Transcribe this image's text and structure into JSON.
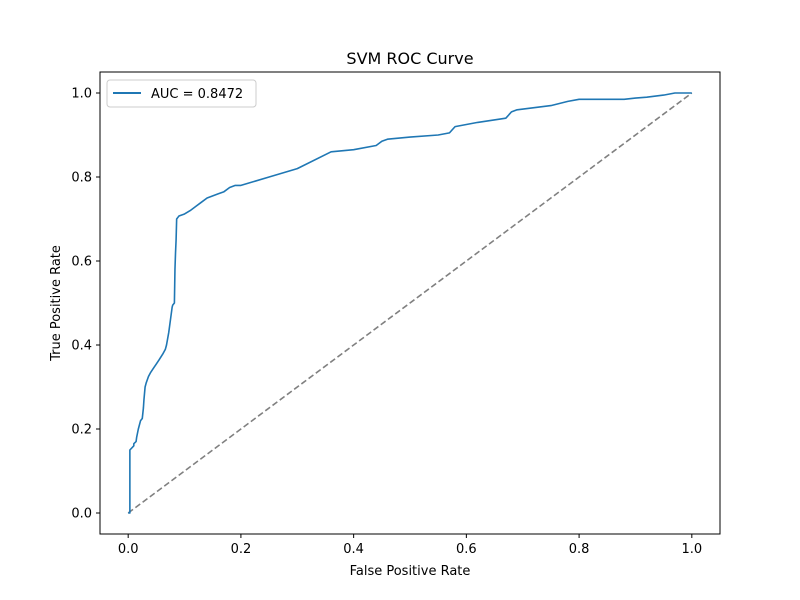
{
  "chart_data": {
    "type": "line",
    "title": "SVM ROC Curve",
    "xlabel": "False Positive Rate",
    "ylabel": "True Positive Rate",
    "xlim": [
      -0.05,
      1.05
    ],
    "ylim": [
      -0.05,
      1.05
    ],
    "xticks": [
      0.0,
      0.2,
      0.4,
      0.6,
      0.8,
      1.0
    ],
    "yticks": [
      0.0,
      0.2,
      0.4,
      0.6,
      0.8,
      1.0
    ],
    "xtick_labels": [
      "0.0",
      "0.2",
      "0.4",
      "0.6",
      "0.8",
      "1.0"
    ],
    "ytick_labels": [
      "0.0",
      "0.2",
      "0.4",
      "0.6",
      "0.8",
      "1.0"
    ],
    "grid": false,
    "legend_position": "top-left",
    "series": [
      {
        "name": "AUC = 0.8472",
        "color": "#1f77b4",
        "style": "solid",
        "x": [
          0.0,
          0.003,
          0.003,
          0.01,
          0.01,
          0.014,
          0.015,
          0.018,
          0.022,
          0.025,
          0.027,
          0.028,
          0.03,
          0.032,
          0.036,
          0.04,
          0.045,
          0.05,
          0.055,
          0.062,
          0.066,
          0.068,
          0.072,
          0.075,
          0.078,
          0.079,
          0.082,
          0.083,
          0.084,
          0.085,
          0.086,
          0.09,
          0.1,
          0.11,
          0.12,
          0.13,
          0.14,
          0.15,
          0.16,
          0.17,
          0.18,
          0.19,
          0.2,
          0.25,
          0.3,
          0.36,
          0.4,
          0.44,
          0.45,
          0.46,
          0.5,
          0.55,
          0.57,
          0.58,
          0.62,
          0.67,
          0.68,
          0.69,
          0.72,
          0.75,
          0.78,
          0.8,
          0.88,
          0.9,
          0.92,
          0.95,
          0.97,
          1.0
        ],
        "y": [
          0.0,
          0.0,
          0.15,
          0.16,
          0.165,
          0.17,
          0.18,
          0.2,
          0.22,
          0.225,
          0.25,
          0.27,
          0.3,
          0.31,
          0.325,
          0.335,
          0.345,
          0.355,
          0.365,
          0.38,
          0.39,
          0.4,
          0.43,
          0.46,
          0.49,
          0.495,
          0.5,
          0.58,
          0.62,
          0.65,
          0.7,
          0.707,
          0.712,
          0.72,
          0.73,
          0.74,
          0.75,
          0.755,
          0.76,
          0.765,
          0.775,
          0.78,
          0.78,
          0.8,
          0.82,
          0.86,
          0.865,
          0.875,
          0.885,
          0.89,
          0.895,
          0.9,
          0.905,
          0.92,
          0.93,
          0.94,
          0.955,
          0.96,
          0.965,
          0.97,
          0.98,
          0.985,
          0.985,
          0.988,
          0.99,
          0.995,
          1.0,
          1.0
        ]
      },
      {
        "name": "",
        "color": "#808080",
        "style": "dashed",
        "x": [
          0.0,
          1.0
        ],
        "y": [
          0.0,
          1.0
        ]
      }
    ]
  }
}
